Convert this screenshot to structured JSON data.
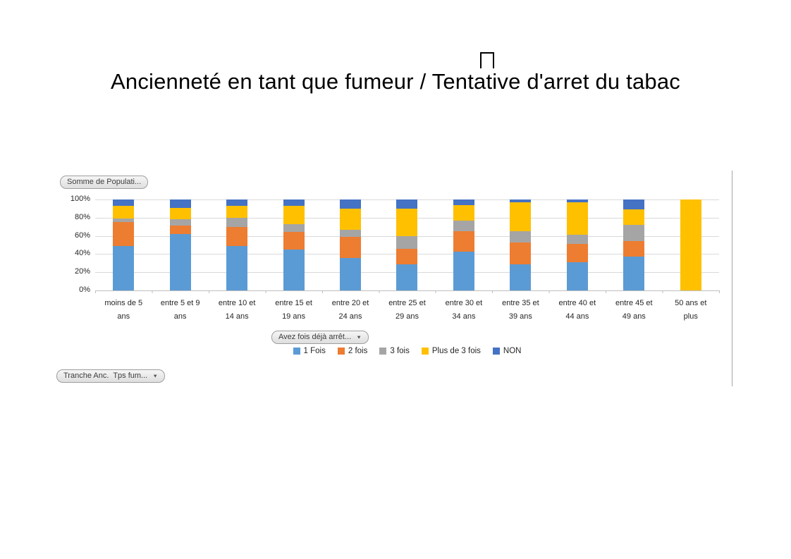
{
  "title": {
    "text": "Ancienneté en tant que fumeur / Tentative d'arret du tabac",
    "decoration": "missing-character-box"
  },
  "pivot_buttons": {
    "value_field": "Somme de Populati...",
    "legend_field": "Avez fois déjà arrêt...",
    "axis_field": "Tranche Anc.  Tps fum...",
    "dropdown_arrow": "▼"
  },
  "chart_data": {
    "type": "bar",
    "stacked": true,
    "percent_stacked": true,
    "title": "",
    "xlabel": "",
    "ylabel": "",
    "ylim": [
      0,
      100
    ],
    "grid": true,
    "legend_position": "bottom",
    "y_ticks": [
      "100%",
      "80%",
      "60%",
      "40%",
      "20%",
      "0%"
    ],
    "categories": [
      "moins de 5 ans",
      "entre 5 et 9 ans",
      "entre 10 et 14 ans",
      "entre 15 et 19 ans",
      "entre 20 et 24 ans",
      "entre 25 et 29 ans",
      "entre 30 et 34 ans",
      "entre 35 et 39 ans",
      "entre 40 et 44 ans",
      "entre 45 et 49 ans",
      "50 ans et plus"
    ],
    "category_label_lines": [
      [
        "moins de 5",
        "ans"
      ],
      [
        "entre 5 et 9",
        "ans"
      ],
      [
        "entre 10 et",
        "14 ans"
      ],
      [
        "entre 15 et",
        "19 ans"
      ],
      [
        "entre 20 et",
        "24 ans"
      ],
      [
        "entre 25 et",
        "29 ans"
      ],
      [
        "entre 30 et",
        "34 ans"
      ],
      [
        "entre 35 et",
        "39 ans"
      ],
      [
        "entre 40 et",
        "44 ans"
      ],
      [
        "entre 45 et",
        "49 ans"
      ],
      [
        "50 ans et",
        "plus"
      ]
    ],
    "series": [
      {
        "name": "1 Fois",
        "color": "#5B9BD5",
        "values": [
          49,
          62,
          49,
          45,
          36,
          29,
          43,
          29,
          31,
          37,
          0
        ]
      },
      {
        "name": "2 fois",
        "color": "#ED7D31",
        "values": [
          26,
          9,
          21,
          19,
          23,
          17,
          22,
          24,
          20,
          17,
          0
        ]
      },
      {
        "name": "3 fois",
        "color": "#A5A5A5",
        "values": [
          4,
          7,
          10,
          9,
          8,
          14,
          12,
          12,
          10,
          18,
          0
        ]
      },
      {
        "name": "Plus de 3 fois",
        "color": "#FFC000",
        "values": [
          14,
          13,
          13,
          20,
          23,
          30,
          17,
          32,
          36,
          17,
          100
        ]
      },
      {
        "name": "NON",
        "color": "#4472C4",
        "values": [
          7,
          9,
          7,
          7,
          10,
          10,
          6,
          3,
          3,
          11,
          0
        ]
      }
    ]
  },
  "style_colors": {
    "gridline": "#D9D9D9",
    "axis_line": "#BFBFBF",
    "button_border": "#9E9E9E"
  }
}
